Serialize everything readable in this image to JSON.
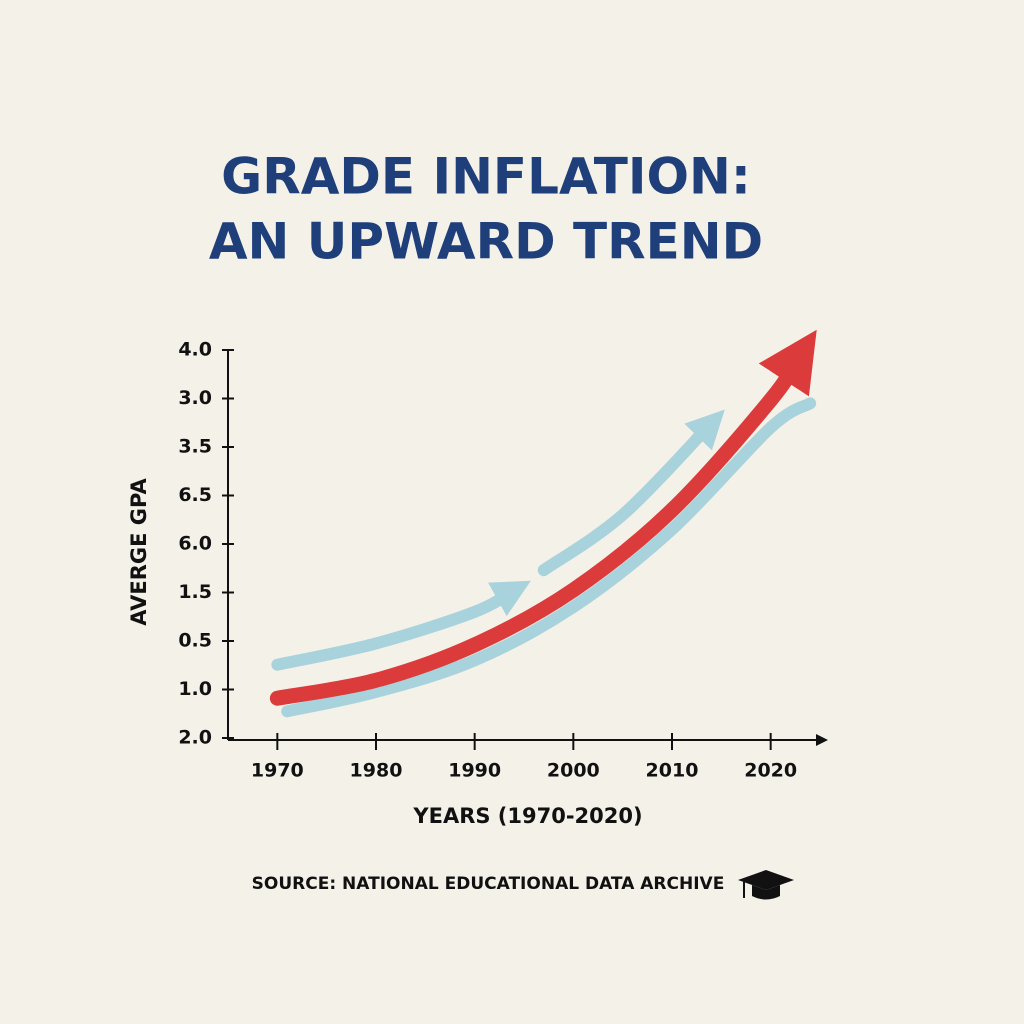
{
  "chart_data": {
    "type": "line",
    "title": [
      "GRADE INFLATION:",
      "AN UPWARD TREND"
    ],
    "x_label": "YEARS (1970-2020)",
    "y_label": "AVERGE GPA",
    "source": "SOURCE: NATIONAL EDUCATIONAL DATA ARCHIVE",
    "y_categories": [
      "2.0",
      "1.0",
      "0.5",
      "1.5",
      "6.0",
      "6.5",
      "3.5",
      "3.0",
      "4.0"
    ],
    "xlim": [
      1965,
      2025
    ],
    "xticks": [
      1970,
      1980,
      1990,
      2000,
      2010,
      2020
    ],
    "series": [
      {
        "color": "#a9d3dc",
        "x": [
          1970,
          1980,
          1990,
          1994,
          1996,
          1997,
          2005,
          2014
        ],
        "values": [
          1.51,
          1.95,
          2.6,
          3.05,
          null,
          3.46,
          4.6,
          6.49
        ]
      },
      {
        "color": "#a9d3dc",
        "x": [
          1971,
          1980,
          1990,
          2000,
          2010,
          2020,
          2024
        ],
        "values": [
          0.55,
          0.95,
          1.6,
          2.7,
          4.3,
          6.4,
          6.9
        ]
      },
      {
        "color": "#dc3b3b",
        "x": [
          1970,
          1980,
          1990,
          2000,
          2010,
          2020,
          2023
        ],
        "values": [
          0.82,
          1.19,
          1.92,
          3.05,
          4.7,
          6.97,
          7.9
        ]
      }
    ]
  }
}
